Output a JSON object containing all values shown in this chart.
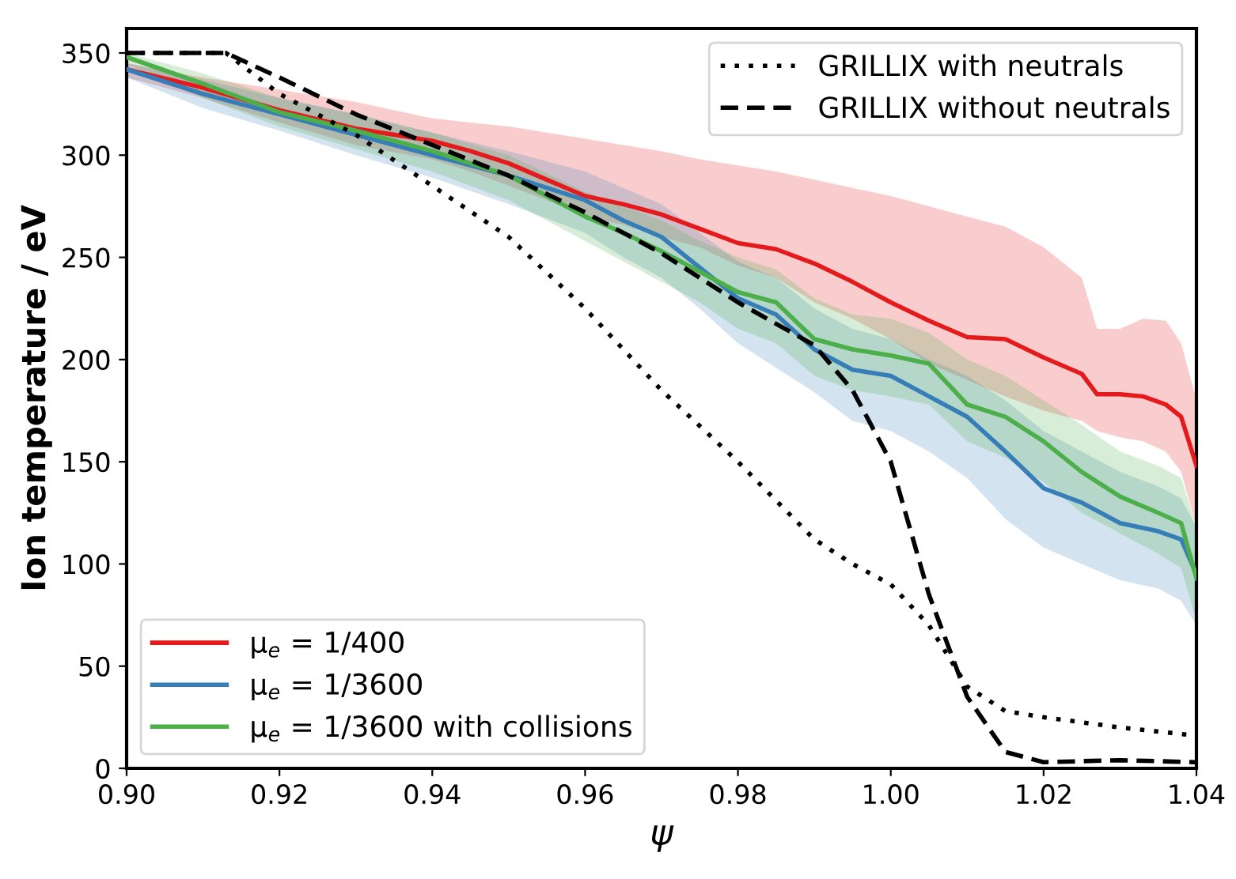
{
  "chart_data": {
    "type": "line",
    "xlabel": "ψ",
    "ylabel": "Ion temperature / eV",
    "xlim": [
      0.9,
      1.04
    ],
    "ylim": [
      0,
      362
    ],
    "xticks": [
      {
        "value": 0.9,
        "label": "0.90"
      },
      {
        "value": 0.92,
        "label": "0.92"
      },
      {
        "value": 0.94,
        "label": "0.94"
      },
      {
        "value": 0.96,
        "label": "0.96"
      },
      {
        "value": 0.98,
        "label": "0.98"
      },
      {
        "value": 1.0,
        "label": "1.00"
      },
      {
        "value": 1.02,
        "label": "1.02"
      },
      {
        "value": 1.04,
        "label": "1.04"
      }
    ],
    "yticks": [
      0,
      50,
      100,
      150,
      200,
      250,
      300,
      350
    ],
    "grid": false,
    "legend": [
      "bottom left",
      "top right"
    ],
    "line_style": "solid",
    "marker": "none",
    "series": [
      {
        "name": "μ$_{e}$ = 1/400",
        "color": "#e41a1c",
        "x": [
          0.9,
          0.91,
          0.92,
          0.93,
          0.94,
          0.945,
          0.95,
          0.955,
          0.96,
          0.965,
          0.97,
          0.975,
          0.98,
          0.985,
          0.99,
          0.995,
          1.0,
          1.005,
          1.01,
          1.015,
          1.02,
          1.025,
          1.027,
          1.03,
          1.033,
          1.036,
          1.038,
          1.04
        ],
        "values": [
          342,
          333,
          322,
          313,
          307,
          302,
          296,
          288,
          280,
          276,
          271,
          264,
          257,
          254,
          247,
          238,
          228,
          219,
          211,
          210,
          201,
          193,
          183,
          183,
          182,
          178,
          172,
          148
        ],
        "upper": [
          345,
          338,
          332,
          326,
          318,
          316,
          314,
          311,
          308,
          305,
          302,
          298,
          295,
          292,
          288,
          284,
          280,
          275,
          270,
          265,
          255,
          240,
          215,
          215,
          220,
          219,
          208,
          180
        ],
        "lower": [
          338,
          328,
          316,
          305,
          298,
          292,
          285,
          278,
          270,
          266,
          260,
          255,
          246,
          240,
          228,
          220,
          210,
          198,
          190,
          182,
          175,
          170,
          165,
          162,
          160,
          155,
          145,
          118
        ]
      },
      {
        "name": "μ$_{e}$ = 1/3600",
        "color": "#377eb8",
        "x": [
          0.9,
          0.91,
          0.92,
          0.93,
          0.94,
          0.95,
          0.96,
          0.965,
          0.97,
          0.975,
          0.98,
          0.985,
          0.99,
          0.995,
          1.0,
          1.005,
          1.01,
          1.015,
          1.02,
          1.025,
          1.03,
          1.035,
          1.038,
          1.04
        ],
        "values": [
          342,
          330,
          320,
          310,
          300,
          290,
          278,
          268,
          260,
          245,
          230,
          222,
          205,
          195,
          192,
          182,
          172,
          155,
          137,
          130,
          120,
          116,
          112,
          95
        ],
        "upper": [
          345,
          337,
          328,
          320,
          311,
          302,
          292,
          284,
          276,
          262,
          248,
          240,
          225,
          215,
          210,
          200,
          192,
          180,
          165,
          155,
          145,
          138,
          132,
          118
        ],
        "lower": [
          338,
          323,
          312,
          300,
          289,
          276,
          262,
          250,
          240,
          225,
          208,
          196,
          184,
          170,
          165,
          155,
          142,
          122,
          108,
          100,
          92,
          88,
          82,
          70
        ]
      },
      {
        "name": "μ$_{e}$ = 1/3600 with collisions",
        "color": "#4daf4a",
        "x": [
          0.9,
          0.91,
          0.92,
          0.93,
          0.94,
          0.95,
          0.96,
          0.965,
          0.97,
          0.975,
          0.98,
          0.985,
          0.99,
          0.995,
          1.0,
          1.005,
          1.01,
          1.015,
          1.02,
          1.025,
          1.03,
          1.035,
          1.038,
          1.04
        ],
        "values": [
          348,
          335,
          321,
          312,
          302,
          290,
          270,
          262,
          253,
          243,
          233,
          228,
          210,
          205,
          202,
          198,
          178,
          172,
          160,
          145,
          133,
          125,
          120,
          93
        ],
        "upper": [
          350,
          340,
          328,
          320,
          311,
          300,
          282,
          275,
          268,
          258,
          250,
          244,
          230,
          222,
          220,
          213,
          200,
          192,
          180,
          168,
          155,
          148,
          142,
          118
        ],
        "lower": [
          345,
          328,
          314,
          303,
          292,
          278,
          258,
          248,
          238,
          228,
          215,
          208,
          192,
          185,
          182,
          178,
          160,
          152,
          140,
          125,
          115,
          105,
          98,
          72
        ]
      },
      {
        "name": "GRILLIX with neutrals",
        "color": "#000000",
        "line_style": "dotted",
        "x": [
          0.9,
          0.913,
          0.92,
          0.93,
          0.94,
          0.95,
          0.96,
          0.97,
          0.98,
          0.99,
          0.995,
          1.0,
          1.005,
          1.01,
          1.015,
          1.02,
          1.03,
          1.04
        ],
        "values": [
          350,
          350,
          330,
          310,
          285,
          260,
          225,
          185,
          150,
          112,
          100,
          90,
          70,
          40,
          28,
          25,
          20,
          16
        ]
      },
      {
        "name": "GRILLIX without neutrals",
        "color": "#000000",
        "line_style": "dashed",
        "x": [
          0.9,
          0.913,
          0.92,
          0.93,
          0.94,
          0.95,
          0.96,
          0.97,
          0.98,
          0.99,
          0.995,
          1.0,
          1.005,
          1.01,
          1.015,
          1.02,
          1.03,
          1.04
        ],
        "values": [
          350,
          350,
          338,
          320,
          305,
          290,
          272,
          252,
          228,
          207,
          185,
          150,
          85,
          35,
          8,
          3,
          4,
          3
        ]
      }
    ]
  }
}
